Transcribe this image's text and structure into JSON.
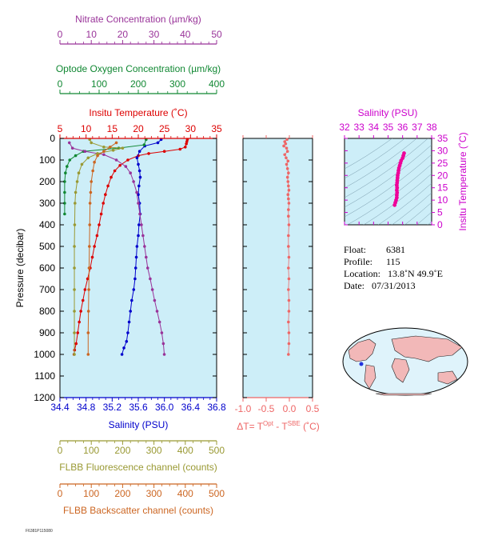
{
  "info": {
    "float_label": "Float:",
    "float": "6381",
    "profile_label": "Profile:",
    "profile": "115",
    "location_label": "Location:",
    "location": "13.8˚N  49.9˚E",
    "date_label": "Date:",
    "date": "07/31/2013"
  },
  "chart_data": [
    {
      "type": "line",
      "title": "",
      "ylabel": "Pressure (decibar)",
      "ylim": [
        1200,
        0
      ],
      "yticks": [
        0,
        100,
        200,
        300,
        400,
        500,
        600,
        700,
        800,
        900,
        1000,
        1100,
        1200
      ],
      "axes": {
        "nitrate": {
          "label": "Nitrate Concentration (µm/kg)",
          "lim": [
            0,
            50
          ],
          "ticks": [
            0,
            10,
            20,
            30,
            40,
            50
          ],
          "color": "#993399"
        },
        "oxygen": {
          "label": "Optode Oxygen Concentration (µm/kg)",
          "lim": [
            0,
            400
          ],
          "ticks": [
            0,
            100,
            200,
            300,
            400
          ],
          "color": "#118833"
        },
        "temperature": {
          "label": "Insitu Temperature (˚C)",
          "lim": [
            5,
            35
          ],
          "ticks": [
            5,
            10,
            15,
            20,
            25,
            30,
            35
          ],
          "color": "#dd0000"
        },
        "salinity": {
          "label": "Salinity (PSU)",
          "lim": [
            34.4,
            36.8
          ],
          "ticks": [
            "34.4",
            "34.8",
            "35.2",
            "35.6",
            "36.0",
            "36.4",
            "36.8"
          ],
          "color": "#0000cc"
        },
        "fluorescence": {
          "label": "FLBB Fluorescence channel (counts)",
          "lim": [
            0,
            500
          ],
          "ticks": [
            0,
            100,
            200,
            300,
            400,
            500
          ],
          "color": "#999933"
        },
        "backscatter": {
          "label": "FLBB Backscatter channel (counts)",
          "lim": [
            0,
            500
          ],
          "ticks": [
            0,
            100,
            200,
            300,
            400,
            500
          ],
          "color": "#cc6622"
        }
      },
      "series": [
        {
          "axis": "temperature",
          "color": "#dd0000",
          "points": [
            [
              29.4,
              5
            ],
            [
              29.3,
              15
            ],
            [
              29.2,
              25
            ],
            [
              29.0,
              40
            ],
            [
              28.0,
              50
            ],
            [
              25.0,
              60
            ],
            [
              22.0,
              70
            ],
            [
              20.0,
              80
            ],
            [
              18.0,
              100
            ],
            [
              16.5,
              125
            ],
            [
              15.5,
              150
            ],
            [
              14.8,
              180
            ],
            [
              14.2,
              220
            ],
            [
              13.7,
              260
            ],
            [
              13.3,
              300
            ],
            [
              12.9,
              350
            ],
            [
              12.5,
              400
            ],
            [
              12.1,
              450
            ],
            [
              11.6,
              500
            ],
            [
              11.2,
              550
            ],
            [
              10.8,
              600
            ],
            [
              10.3,
              650
            ],
            [
              9.8,
              700
            ],
            [
              9.4,
              750
            ],
            [
              9.0,
              800
            ],
            [
              8.7,
              850
            ],
            [
              8.4,
              900
            ],
            [
              8.1,
              950
            ],
            [
              7.8,
              980
            ],
            [
              7.7,
              1000
            ]
          ]
        },
        {
          "axis": "salinity",
          "color": "#0000cc",
          "points": [
            [
              35.95,
              5
            ],
            [
              35.9,
              20
            ],
            [
              35.7,
              35
            ],
            [
              35.62,
              60
            ],
            [
              35.58,
              90
            ],
            [
              35.6,
              120
            ],
            [
              35.62,
              150
            ],
            [
              35.63,
              180
            ],
            [
              35.61,
              220
            ],
            [
              35.6,
              260
            ],
            [
              35.62,
              300
            ],
            [
              35.63,
              350
            ],
            [
              35.61,
              400
            ],
            [
              35.6,
              450
            ],
            [
              35.58,
              500
            ],
            [
              35.57,
              550
            ],
            [
              35.56,
              600
            ],
            [
              35.55,
              650
            ],
            [
              35.53,
              700
            ],
            [
              35.5,
              750
            ],
            [
              35.48,
              800
            ],
            [
              35.46,
              850
            ],
            [
              35.44,
              900
            ],
            [
              35.42,
              940
            ],
            [
              35.38,
              970
            ],
            [
              35.35,
              1000
            ]
          ]
        },
        {
          "axis": "oxygen",
          "color": "#118833",
          "points": [
            [
              220,
              5
            ],
            [
              215,
              30
            ],
            [
              150,
              45
            ],
            [
              60,
              60
            ],
            [
              40,
              80
            ],
            [
              25,
              100
            ],
            [
              18,
              130
            ],
            [
              14,
              160
            ],
            [
              12,
              200
            ],
            [
              12,
              250
            ],
            [
              12,
              300
            ],
            [
              12,
              350
            ]
          ]
        },
        {
          "axis": "nitrate",
          "color": "#993399",
          "points": [
            [
              3,
              20
            ],
            [
              4,
              45
            ],
            [
              8,
              60
            ],
            [
              14,
              75
            ],
            [
              18,
              100
            ],
            [
              21,
              130
            ],
            [
              22.5,
              160
            ],
            [
              23.5,
              200
            ],
            [
              24.5,
              250
            ],
            [
              25,
              300
            ],
            [
              25.5,
              350
            ],
            [
              26,
              400
            ],
            [
              26.5,
              450
            ],
            [
              27,
              500
            ],
            [
              27.5,
              550
            ],
            [
              28,
              600
            ],
            [
              28.8,
              650
            ],
            [
              29.5,
              700
            ],
            [
              30.2,
              750
            ],
            [
              31,
              800
            ],
            [
              31.8,
              850
            ],
            [
              32.5,
              900
            ],
            [
              33,
              950
            ],
            [
              33.3,
              1000
            ]
          ]
        },
        {
          "axis": "fluorescence",
          "color": "#999933",
          "points": [
            [
              95,
              5
            ],
            [
              100,
              20
            ],
            [
              140,
              40
            ],
            [
              200,
              45
            ],
            [
              170,
              55
            ],
            [
              120,
              70
            ],
            [
              90,
              90
            ],
            [
              70,
              120
            ],
            [
              60,
              160
            ],
            [
              55,
              200
            ],
            [
              50,
              250
            ],
            [
              48,
              300
            ],
            [
              47,
              400
            ],
            [
              46,
              500
            ],
            [
              46,
              600
            ],
            [
              46,
              700
            ],
            [
              46,
              800
            ],
            [
              46,
              900
            ],
            [
              46,
              1000
            ]
          ]
        },
        {
          "axis": "backscatter",
          "color": "#cc6622",
          "points": [
            [
              180,
              20
            ],
            [
              160,
              40
            ],
            [
              140,
              60
            ],
            [
              120,
              80
            ],
            [
              110,
              110
            ],
            [
              105,
              150
            ],
            [
              100,
              200
            ],
            [
              98,
              250
            ],
            [
              96,
              300
            ],
            [
              95,
              400
            ],
            [
              94,
              500
            ],
            [
              93,
              600
            ],
            [
              92,
              700
            ],
            [
              91,
              800
            ],
            [
              90,
              900
            ],
            [
              90,
              1000
            ]
          ]
        }
      ]
    },
    {
      "type": "scatter",
      "title": "",
      "xlabel": "ΔT= T^Opt - T^SBE (˚C)",
      "xlabel_main": "ΔT= T",
      "xlabel_sup1": "Opt",
      "xlabel_mid": " - T",
      "xlabel_sup2": "SBE",
      "xlabel_end": " (˚C)",
      "xlim": [
        -1.0,
        0.5
      ],
      "xticks": [
        "-1.0",
        "-0.5",
        "0.0",
        "0.5"
      ],
      "ylim": [
        1200,
        0
      ],
      "color": "#ee6666",
      "points": [
        [
          -0.05,
          5
        ],
        [
          -0.1,
          15
        ],
        [
          -0.08,
          25
        ],
        [
          -0.12,
          35
        ],
        [
          -0.06,
          45
        ],
        [
          -0.04,
          60
        ],
        [
          -0.1,
          75
        ],
        [
          -0.07,
          90
        ],
        [
          -0.03,
          105
        ],
        [
          -0.06,
          120
        ],
        [
          -0.04,
          140
        ],
        [
          -0.02,
          160
        ],
        [
          -0.04,
          180
        ],
        [
          -0.03,
          200
        ],
        [
          -0.02,
          220
        ],
        [
          -0.01,
          240
        ],
        [
          -0.03,
          260
        ],
        [
          -0.02,
          280
        ],
        [
          -0.01,
          300
        ],
        [
          -0.02,
          330
        ],
        [
          -0.02,
          360
        ],
        [
          -0.01,
          400
        ],
        [
          -0.02,
          450
        ],
        [
          -0.02,
          500
        ],
        [
          -0.01,
          550
        ],
        [
          -0.02,
          600
        ],
        [
          -0.01,
          650
        ],
        [
          -0.02,
          700
        ],
        [
          -0.01,
          750
        ],
        [
          -0.01,
          800
        ],
        [
          -0.02,
          850
        ],
        [
          -0.01,
          900
        ],
        [
          -0.01,
          950
        ],
        [
          -0.02,
          1000
        ]
      ]
    },
    {
      "type": "scatter",
      "title": "",
      "xlabel": "Salinity (PSU)",
      "ylabel": "Insitu Temperature (˚C)",
      "xlim": [
        32,
        38
      ],
      "xticks": [
        32,
        33,
        34,
        35,
        36,
        37,
        38
      ],
      "ylim": [
        0,
        35
      ],
      "yticks": [
        0,
        5,
        10,
        15,
        20,
        25,
        30,
        35
      ],
      "color": "#ee0099",
      "points": [
        [
          35.45,
          8
        ],
        [
          35.5,
          9
        ],
        [
          35.55,
          10
        ],
        [
          35.6,
          11
        ],
        [
          35.6,
          12
        ],
        [
          35.62,
          13
        ],
        [
          35.6,
          14
        ],
        [
          35.62,
          15
        ],
        [
          35.6,
          16
        ],
        [
          35.62,
          17
        ],
        [
          35.63,
          18
        ],
        [
          35.65,
          19
        ],
        [
          35.66,
          20
        ],
        [
          35.7,
          21
        ],
        [
          35.72,
          22
        ],
        [
          35.75,
          23
        ],
        [
          35.8,
          24
        ],
        [
          35.85,
          25
        ],
        [
          35.9,
          26
        ],
        [
          36.0,
          27
        ],
        [
          36.05,
          28
        ],
        [
          36.1,
          29
        ]
      ]
    }
  ]
}
